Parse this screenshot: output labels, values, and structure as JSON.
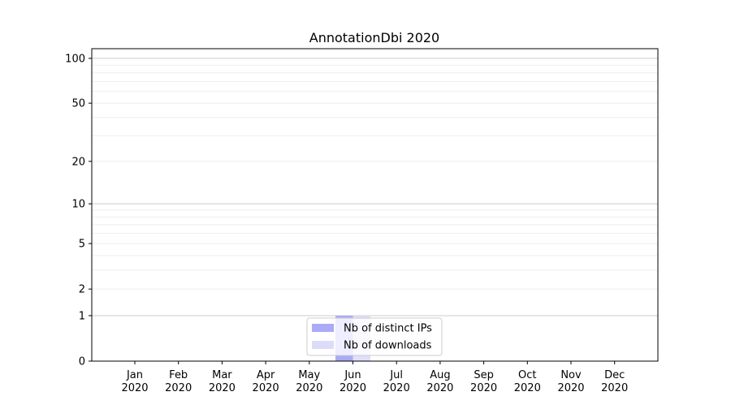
{
  "chart_data": {
    "type": "bar",
    "title": "AnnotationDbi 2020",
    "xlabel": "",
    "ylabel": "",
    "y_scale": "log(1+y)",
    "ylim": [
      0,
      116
    ],
    "yticks": [
      0,
      1,
      2,
      5,
      10,
      20,
      50,
      100
    ],
    "grid": true,
    "legend_position": "lower-center",
    "categories": [
      "Jan\n2020",
      "Feb\n2020",
      "Mar\n2020",
      "Apr\n2020",
      "May\n2020",
      "Jun\n2020",
      "Jul\n2020",
      "Aug\n2020",
      "Sep\n2020",
      "Oct\n2020",
      "Nov\n2020",
      "Dec\n2020"
    ],
    "series": [
      {
        "name": "Nb of distinct IPs",
        "color": "#aaaaf8",
        "values": [
          0,
          0,
          0,
          0,
          0,
          1,
          0,
          0,
          0,
          0,
          0,
          0
        ]
      },
      {
        "name": "Nb of downloads",
        "color": "#dcdcfa",
        "values": [
          0,
          0,
          0,
          0,
          0,
          1,
          0,
          0,
          0,
          0,
          0,
          0
        ]
      }
    ]
  }
}
